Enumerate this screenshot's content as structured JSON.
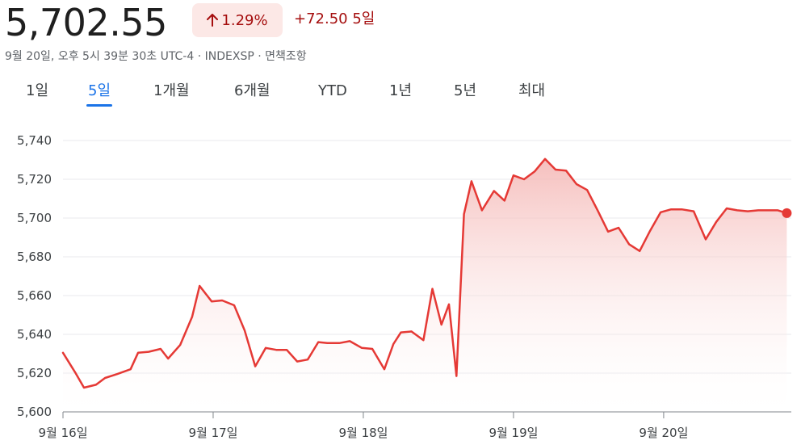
{
  "header": {
    "price": "5,702.55",
    "change_percent": "1.29%",
    "change_abs": "+72.50",
    "period": "5일",
    "meta": "9월 20일, 오후 5시 39분 30초 UTC-4 · INDEXSP · 면책조항"
  },
  "tabs": [
    {
      "label": "1일",
      "active": false
    },
    {
      "label": "5일",
      "active": true
    },
    {
      "label": "1개월",
      "active": false
    },
    {
      "label": "6개월",
      "active": false
    },
    {
      "label": "YTD",
      "active": false
    },
    {
      "label": "1년",
      "active": false
    },
    {
      "label": "5년",
      "active": false
    },
    {
      "label": "최대",
      "active": false
    }
  ],
  "colors": {
    "line": "#e53935",
    "fill_top": "#f4b4b2",
    "grid": "#e8eaed",
    "axis": "#3c4043",
    "up_text": "#a50e0e",
    "pill_bg": "#fce8e6",
    "accent": "#1a73e8"
  },
  "chart_data": {
    "type": "area",
    "title": "",
    "xlabel": "",
    "ylabel": "",
    "ylim": [
      5600,
      5740
    ],
    "yticks": [
      "5,600",
      "5,620",
      "5,640",
      "5,660",
      "5,680",
      "5,700",
      "5,720",
      "5,740"
    ],
    "ytick_values": [
      5600,
      5620,
      5640,
      5660,
      5680,
      5700,
      5720,
      5740
    ],
    "xlim": [
      0,
      4.85
    ],
    "xticks": [
      "9월 16일",
      "9월 17일",
      "9월 18일",
      "9월 19일",
      "9월 20일"
    ],
    "xtick_values": [
      0,
      1,
      2,
      3,
      4
    ],
    "grid": true,
    "series": [
      {
        "x": [
          0,
          0.08,
          0.14,
          0.22,
          0.28,
          0.36,
          0.45,
          0.5,
          0.57,
          0.65,
          0.7,
          0.78,
          0.86,
          0.91,
          0.99,
          1.06,
          1.14,
          1.21,
          1.28,
          1.35,
          1.42,
          1.49,
          1.56,
          1.63,
          1.7,
          1.76,
          1.84,
          1.91,
          1.99,
          2.06,
          2.14,
          2.2,
          2.25,
          2.32,
          2.4,
          2.46,
          2.52,
          2.57,
          2.62,
          2.67,
          2.72,
          2.79,
          2.87,
          2.94,
          3.0,
          3.07,
          3.14,
          3.21,
          3.28,
          3.35,
          3.42,
          3.49,
          3.56,
          3.63,
          3.7,
          3.77,
          3.84,
          3.91,
          3.98,
          4.05,
          4.12,
          4.2,
          4.28,
          4.35,
          4.42,
          4.49,
          4.56,
          4.63,
          4.7,
          4.76,
          4.82
        ],
        "y": [
          5630.5,
          5620.5,
          5612.5,
          5614.0,
          5617.5,
          5619.5,
          5622.0,
          5630.5,
          5631.0,
          5632.5,
          5627.5,
          5634.5,
          5649.0,
          5665.0,
          5657.0,
          5657.5,
          5655.0,
          5642.0,
          5623.5,
          5633.0,
          5632.0,
          5632.0,
          5626.0,
          5627.0,
          5636.0,
          5635.5,
          5635.5,
          5636.5,
          5633.0,
          5632.5,
          5622.0,
          5635.0,
          5641.0,
          5641.5,
          5637.0,
          5663.5,
          5645.0,
          5655.5,
          5618.5,
          5702.0,
          5719.0,
          5704.0,
          5714.0,
          5709.0,
          5722.0,
          5720.0,
          5724.0,
          5730.5,
          5725.0,
          5724.5,
          5717.5,
          5714.5,
          5704.0,
          5693.0,
          5695.0,
          5686.5,
          5683.0,
          5693.5,
          5703.0,
          5704.5,
          5704.5,
          5703.5,
          5689.0,
          5698.0,
          5705.0,
          5704.0,
          5703.5,
          5704.0,
          5704.0,
          5704.0,
          5702.55
        ]
      }
    ]
  }
}
